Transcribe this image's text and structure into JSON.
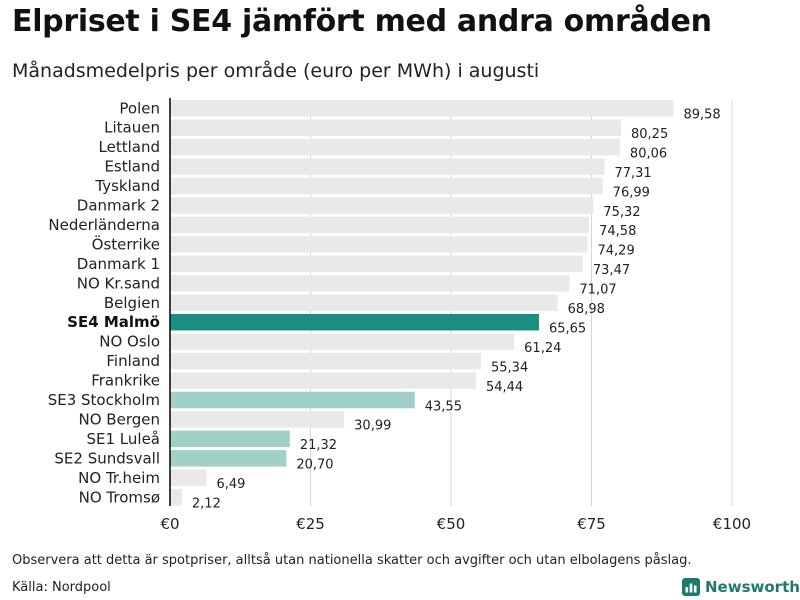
{
  "title": "Elpriset i SE4 jämfört med andra områden",
  "subtitle": "Månadsmedelpris per område (euro per MWh) i augusti",
  "note": "Observera att detta är spotpriser, alltså utan nationella skatter och avgifter och utan elbolagens påslag.",
  "source": "Källa: Nordpool",
  "brand": {
    "name": "Newsworthy",
    "icon": "bar-chart-logo-icon"
  },
  "colors": {
    "default": "#e9e9e9",
    "highlight": "#1a8e80",
    "se_other": "#a0d0c8",
    "axis": "#111111",
    "grid": "#d6d6d6",
    "brand": "#1f7a6e"
  },
  "chart_data": {
    "type": "bar",
    "orientation": "horizontal",
    "title": "Elpriset i SE4 jämfört med andra områden",
    "subtitle": "Månadsmedelpris per område (euro per MWh) i augusti",
    "xlabel": "",
    "ylabel": "",
    "xlim": [
      0,
      100
    ],
    "xticks": [
      0,
      25,
      50,
      75,
      100
    ],
    "xtick_labels": [
      "€0",
      "€25",
      "€50",
      "€75",
      "€100"
    ],
    "grid": true,
    "categories": [
      "Polen",
      "Litauen",
      "Lettland",
      "Estland",
      "Tyskland",
      "Danmark 2",
      "Nederländerna",
      "Österrike",
      "Danmark 1",
      "NO Kr.sand",
      "Belgien",
      "SE4 Malmö",
      "NO Oslo",
      "Finland",
      "Frankrike",
      "SE3 Stockholm",
      "NO Bergen",
      "SE1 Luleå",
      "SE2 Sundsvall",
      "NO Tr.heim",
      "NO Tromsø"
    ],
    "values": [
      89.58,
      80.25,
      80.06,
      77.31,
      76.99,
      75.32,
      74.58,
      74.29,
      73.47,
      71.07,
      68.98,
      65.65,
      61.24,
      55.34,
      54.44,
      43.55,
      30.99,
      21.32,
      20.7,
      6.49,
      2.12
    ],
    "value_labels": [
      "89,58",
      "80,25",
      "80,06",
      "77,31",
      "76,99",
      "75,32",
      "74,58",
      "74,29",
      "73,47",
      "71,07",
      "68,98",
      "65,65",
      "61,24",
      "55,34",
      "54,44",
      "43,55",
      "30,99",
      "21,32",
      "20,70",
      "6,49",
      "2,12"
    ],
    "styles": [
      "default",
      "default",
      "default",
      "default",
      "default",
      "default",
      "default",
      "default",
      "default",
      "default",
      "default",
      "highlight",
      "default",
      "default",
      "default",
      "se_other",
      "default",
      "se_other",
      "se_other",
      "default",
      "default"
    ]
  }
}
